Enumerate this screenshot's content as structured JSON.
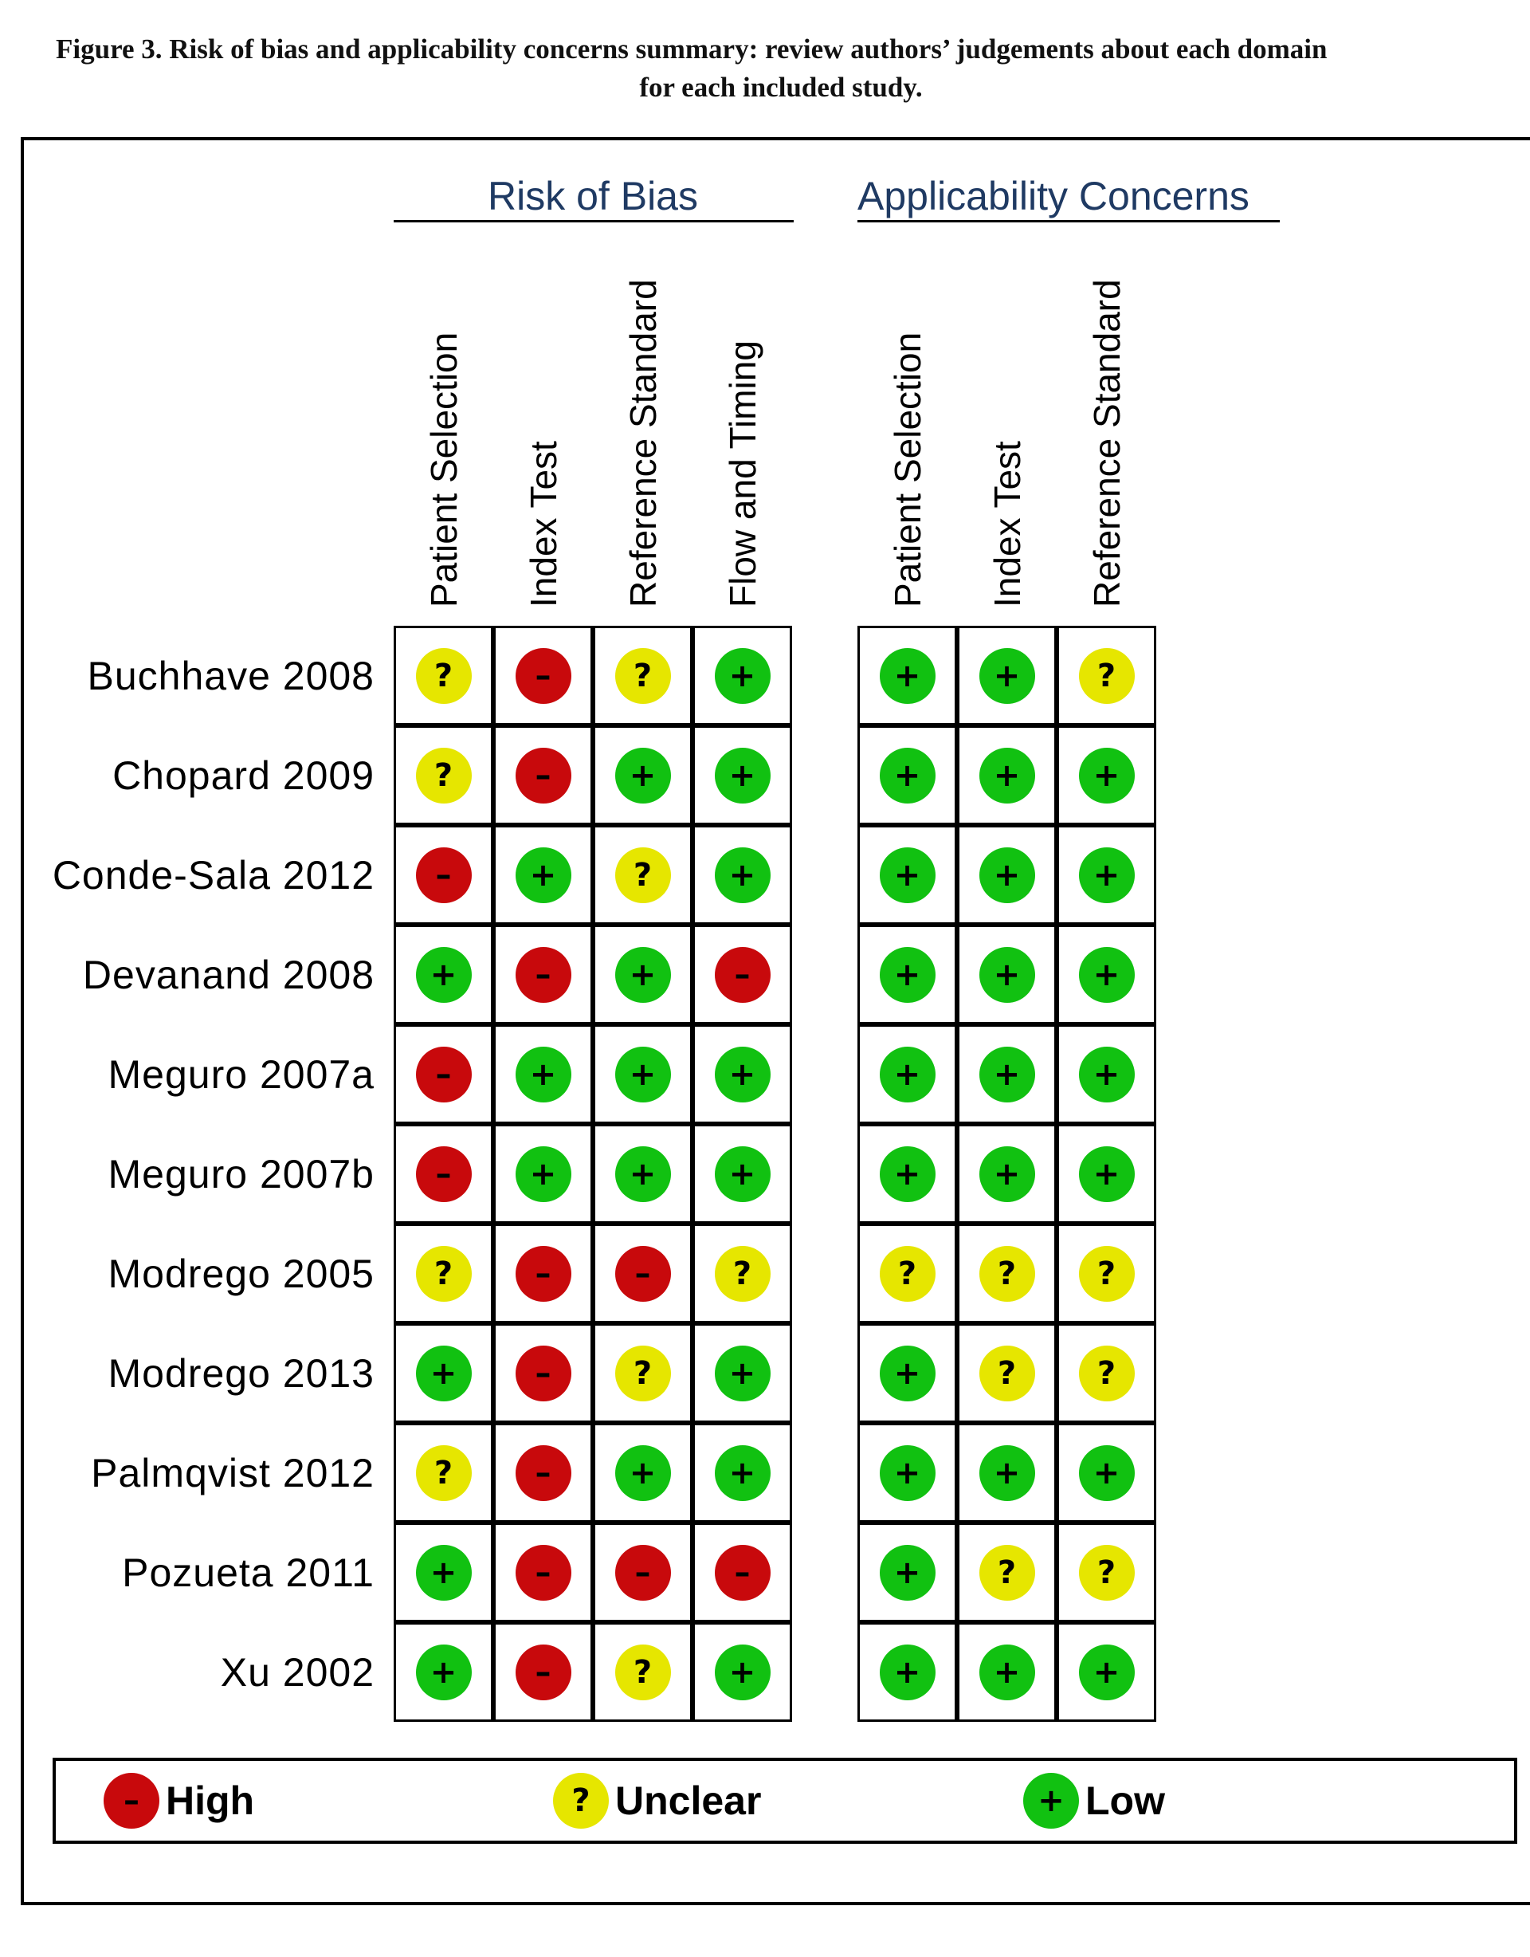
{
  "caption": {
    "line1": "Figure 3.   Risk of bias and applicability concerns summary: review authors’ judgements about each domain",
    "line2": "for each included study."
  },
  "groups": [
    {
      "title": "Risk of Bias",
      "columns": [
        "Patient Selection",
        "Index Test",
        "Reference Standard",
        "Flow and Timing"
      ]
    },
    {
      "title": "Applicability Concerns",
      "columns": [
        "Patient Selection",
        "Index Test",
        "Reference Standard"
      ]
    }
  ],
  "judgement_styles": {
    "high": {
      "label": "High",
      "symbol": "–",
      "color": "#c8090c"
    },
    "unclear": {
      "label": "Unclear",
      "symbol": "?",
      "color": "#e6e600"
    },
    "low": {
      "label": "Low",
      "symbol": "+",
      "color": "#11c111"
    }
  },
  "chart_data": {
    "type": "table",
    "title": "Risk of Bias / Applicability Concerns",
    "columns": [
      "Patient Selection",
      "Index Test",
      "Reference Standard",
      "Flow and Timing",
      "Patient Selection",
      "Index Test",
      "Reference Standard"
    ],
    "rows": [
      {
        "study": "Buchhave 2008",
        "risk_of_bias": [
          "unclear",
          "high",
          "unclear",
          "low"
        ],
        "applicability": [
          "low",
          "low",
          "unclear"
        ]
      },
      {
        "study": "Chopard 2009",
        "risk_of_bias": [
          "unclear",
          "high",
          "low",
          "low"
        ],
        "applicability": [
          "low",
          "low",
          "low"
        ]
      },
      {
        "study": "Conde-Sala 2012",
        "risk_of_bias": [
          "high",
          "low",
          "unclear",
          "low"
        ],
        "applicability": [
          "low",
          "low",
          "low"
        ]
      },
      {
        "study": "Devanand 2008",
        "risk_of_bias": [
          "low",
          "high",
          "low",
          "high"
        ],
        "applicability": [
          "low",
          "low",
          "low"
        ]
      },
      {
        "study": "Meguro 2007a",
        "risk_of_bias": [
          "high",
          "low",
          "low",
          "low"
        ],
        "applicability": [
          "low",
          "low",
          "low"
        ]
      },
      {
        "study": "Meguro 2007b",
        "risk_of_bias": [
          "high",
          "low",
          "low",
          "low"
        ],
        "applicability": [
          "low",
          "low",
          "low"
        ]
      },
      {
        "study": "Modrego 2005",
        "risk_of_bias": [
          "unclear",
          "high",
          "high",
          "unclear"
        ],
        "applicability": [
          "unclear",
          "unclear",
          "unclear"
        ]
      },
      {
        "study": "Modrego 2013",
        "risk_of_bias": [
          "low",
          "high",
          "unclear",
          "low"
        ],
        "applicability": [
          "low",
          "unclear",
          "unclear"
        ]
      },
      {
        "study": "Palmqvist 2012",
        "risk_of_bias": [
          "unclear",
          "high",
          "low",
          "low"
        ],
        "applicability": [
          "low",
          "low",
          "low"
        ]
      },
      {
        "study": "Pozueta 2011",
        "risk_of_bias": [
          "low",
          "high",
          "high",
          "high"
        ],
        "applicability": [
          "low",
          "unclear",
          "unclear"
        ]
      },
      {
        "study": "Xu 2002",
        "risk_of_bias": [
          "low",
          "high",
          "unclear",
          "low"
        ],
        "applicability": [
          "low",
          "low",
          "low"
        ]
      }
    ]
  },
  "legend": [
    {
      "key": "high",
      "label": "High"
    },
    {
      "key": "unclear",
      "label": "Unclear"
    },
    {
      "key": "low",
      "label": "Low"
    }
  ]
}
